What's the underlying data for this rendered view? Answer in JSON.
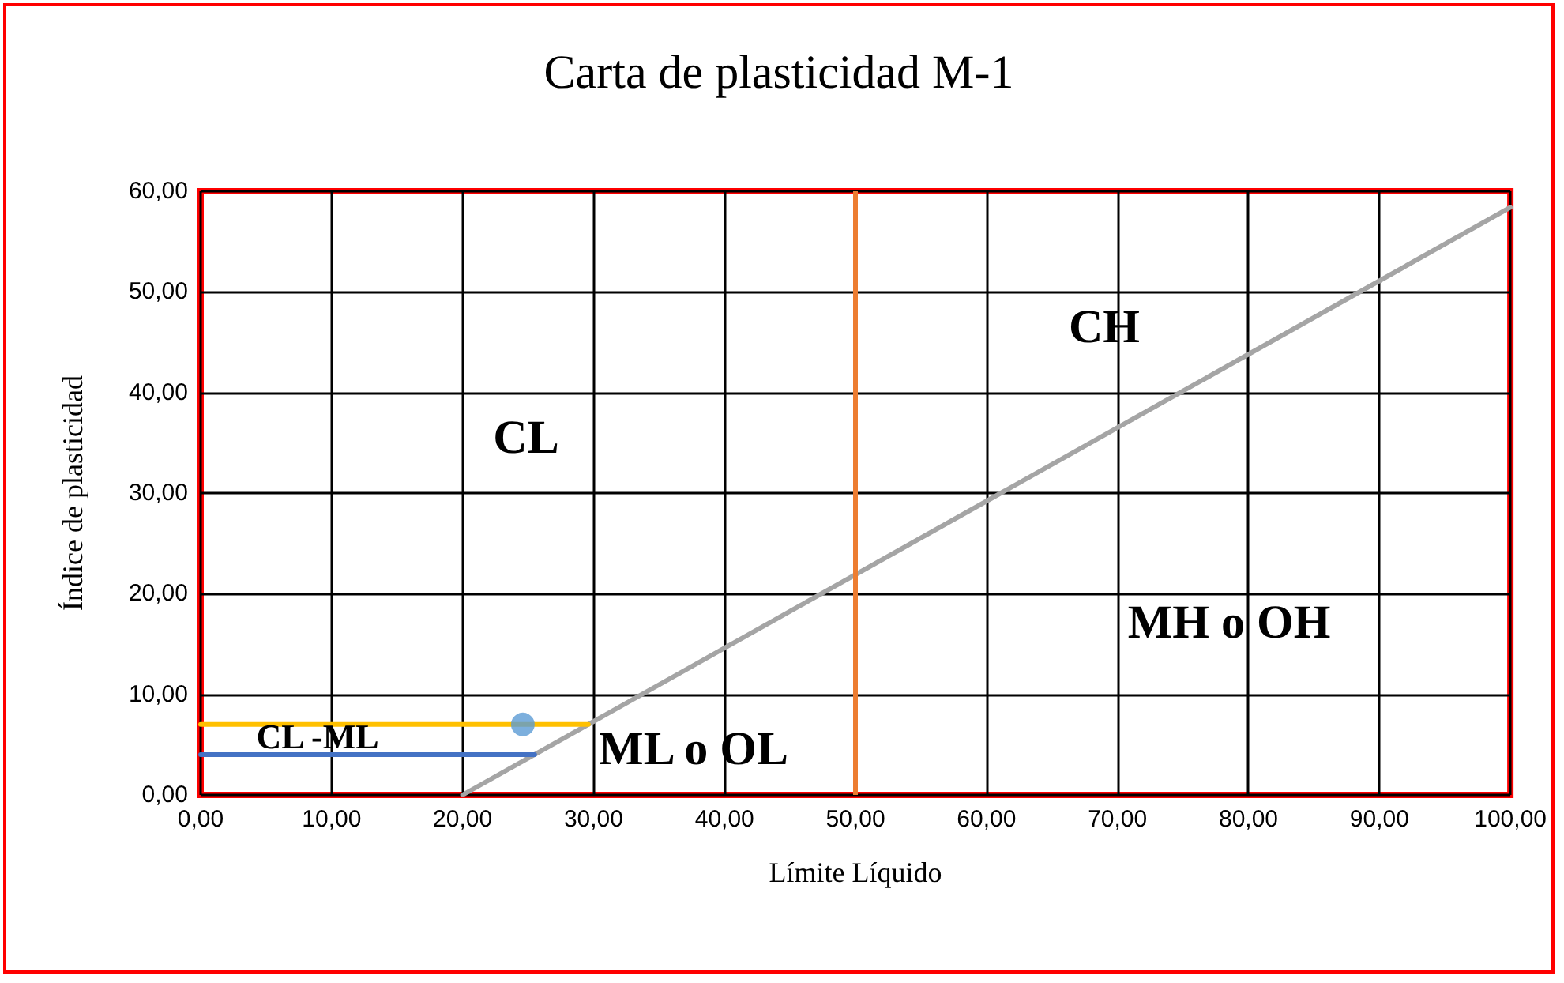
{
  "chart_data": {
    "type": "line",
    "title": "Carta de plasticidad M-1",
    "xlabel": "Límite Líquido",
    "ylabel": "Índice de plasticidad",
    "series": [
      {
        "color": "#a5a5a5",
        "x": [
          20,
          100
        ],
        "values": [
          0,
          58.4
        ]
      },
      {
        "color": "#ffc000",
        "x": [
          0,
          29.6
        ],
        "values": [
          7,
          7
        ]
      },
      {
        "color": "#4472c4",
        "x": [
          0,
          25.5
        ],
        "values": [
          4,
          4
        ]
      },
      {
        "type": "scatter",
        "marker": "circle",
        "color": "#5b9bd5",
        "x": [
          24.6
        ],
        "values": [
          7
        ]
      }
    ],
    "ref_lines": [
      {
        "axis": "x",
        "value": 50,
        "color": "#ed7d31"
      }
    ],
    "annotations": [
      "CL",
      "CH",
      "MH o OH",
      "ML o OL",
      "CL -ML"
    ],
    "xlim": [
      0,
      100
    ],
    "ylim": [
      0,
      60
    ],
    "xticks": [
      {
        "value": 0,
        "label": "0,00"
      },
      {
        "value": 10,
        "label": "10,00"
      },
      {
        "value": 20,
        "label": "20,00"
      },
      {
        "value": 30,
        "label": "30,00"
      },
      {
        "value": 40,
        "label": "40,00"
      },
      {
        "value": 50,
        "label": "50,00"
      },
      {
        "value": 60,
        "label": "60,00"
      },
      {
        "value": 70,
        "label": "70,00"
      },
      {
        "value": 80,
        "label": "80,00"
      },
      {
        "value": 90,
        "label": "90,00"
      },
      {
        "value": 100,
        "label": "100,00"
      }
    ],
    "yticks": [
      {
        "value": 0,
        "label": "0,00"
      },
      {
        "value": 10,
        "label": "10,00"
      },
      {
        "value": 20,
        "label": "20,00"
      },
      {
        "value": 30,
        "label": "30,00"
      },
      {
        "value": 40,
        "label": "40,00"
      },
      {
        "value": 50,
        "label": "50,00"
      },
      {
        "value": 60,
        "label": "60,00"
      }
    ],
    "grid": true,
    "line_style": "solid"
  }
}
